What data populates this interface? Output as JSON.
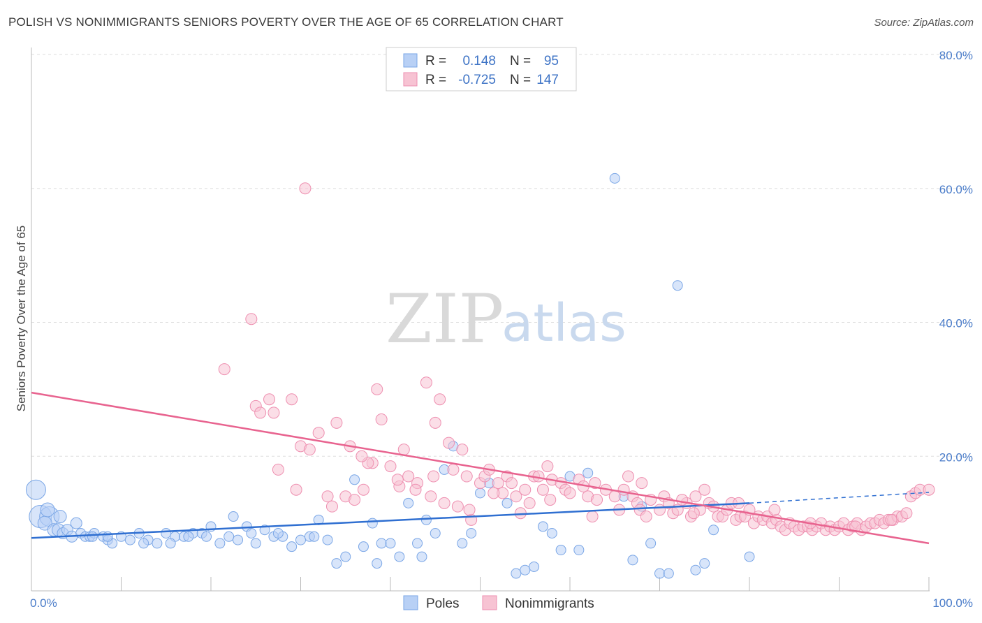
{
  "header": {
    "title": "POLISH VS NONIMMIGRANTS SENIORS POVERTY OVER THE AGE OF 65 CORRELATION CHART",
    "source": "Source: ZipAtlas.com"
  },
  "watermark": {
    "zip": "ZIP",
    "atlas": "atlas"
  },
  "colors": {
    "poles_fill": "#b8d0f5",
    "poles_stroke": "#7aa6e6",
    "poles_line": "#2f6fd1",
    "nonimm_fill": "#f7c3d3",
    "nonimm_stroke": "#ee8fb0",
    "nonimm_line": "#e8638f",
    "grid": "#dddddd",
    "axis_text": "#4a7cc9"
  },
  "legend": {
    "rows": [
      {
        "r_label": "R =",
        "r_value": "0.148",
        "n_label": "N =",
        "n_value": "95"
      },
      {
        "r_label": "R =",
        "r_value": "-0.725",
        "n_label": "N =",
        "n_value": "147"
      }
    ]
  },
  "chart_data": {
    "type": "scatter",
    "xlabel": "",
    "ylabel": "Seniors Poverty Over the Age of 65",
    "xlim": [
      0,
      100
    ],
    "ylim": [
      0,
      80
    ],
    "x_tick_labels": [
      "0.0%",
      "100.0%"
    ],
    "y_ticks": [
      20,
      40,
      60,
      80
    ],
    "y_tick_labels": [
      "20.0%",
      "40.0%",
      "60.0%",
      "80.0%"
    ],
    "grid": true,
    "legend_position": "top-center",
    "series": [
      {
        "name": "Poles",
        "color": "#7aa6e6",
        "trend": {
          "x_start": 0,
          "y_start": 7.8,
          "x_end": 80,
          "y_end": 13.0,
          "dashed_to_x": 100,
          "dashed_to_y": 14.6
        },
        "points": [
          [
            0.5,
            15,
            14
          ],
          [
            1,
            11,
            16
          ],
          [
            2,
            11,
            14
          ],
          [
            1.5,
            10,
            10
          ],
          [
            2.5,
            9,
            9
          ],
          [
            3,
            9,
            9
          ],
          [
            3.5,
            8.5,
            8
          ],
          [
            4,
            9,
            8
          ],
          [
            4.5,
            8,
            8
          ],
          [
            5,
            10,
            8
          ],
          [
            5.5,
            8.5,
            7
          ],
          [
            6,
            8,
            7
          ],
          [
            6.5,
            8,
            7
          ],
          [
            7,
            8.5,
            7
          ],
          [
            8,
            8,
            7
          ],
          [
            8.5,
            7.5,
            7
          ],
          [
            9,
            7,
            7
          ],
          [
            10,
            8,
            7
          ],
          [
            11,
            7.5,
            7
          ],
          [
            12,
            8.5,
            7
          ],
          [
            13,
            7.5,
            7
          ],
          [
            14,
            7,
            7
          ],
          [
            15,
            8.5,
            7
          ],
          [
            16,
            8,
            7
          ],
          [
            17,
            8,
            7
          ],
          [
            18,
            8.5,
            7
          ],
          [
            19,
            8.5,
            7
          ],
          [
            20,
            9.5,
            7
          ],
          [
            21,
            7,
            7
          ],
          [
            22,
            8,
            7
          ],
          [
            23,
            7.5,
            7
          ],
          [
            24,
            9.5,
            7
          ],
          [
            25,
            7,
            7
          ],
          [
            26,
            9,
            7
          ],
          [
            27,
            8,
            7
          ],
          [
            28,
            8,
            7
          ],
          [
            29,
            6.5,
            7
          ],
          [
            30,
            7.5,
            7
          ],
          [
            31,
            8,
            7
          ],
          [
            32,
            10.5,
            7
          ],
          [
            33,
            7.5,
            7
          ],
          [
            34,
            4,
            7
          ],
          [
            35,
            5,
            7
          ],
          [
            36,
            16.5,
            7
          ],
          [
            37,
            6.5,
            7
          ],
          [
            38,
            10,
            7
          ],
          [
            39,
            7,
            7
          ],
          [
            40,
            7,
            7
          ],
          [
            41,
            5,
            7
          ],
          [
            42,
            13,
            7
          ],
          [
            43,
            7,
            7
          ],
          [
            44,
            10.5,
            7
          ],
          [
            45,
            8.5,
            7
          ],
          [
            46,
            18,
            7
          ],
          [
            47,
            21.5,
            7
          ],
          [
            48,
            7,
            7
          ],
          [
            49,
            8.5,
            7
          ],
          [
            50,
            14.5,
            7
          ],
          [
            51,
            16,
            7
          ],
          [
            53,
            13,
            7
          ],
          [
            54,
            2.5,
            7
          ],
          [
            55,
            3,
            7
          ],
          [
            56,
            3.5,
            7
          ],
          [
            57,
            9.5,
            7
          ],
          [
            58,
            8.5,
            7
          ],
          [
            59,
            6,
            7
          ],
          [
            60,
            17,
            7
          ],
          [
            61,
            6,
            7
          ],
          [
            62,
            17.5,
            7
          ],
          [
            65,
            61.5,
            7
          ],
          [
            66,
            14,
            7
          ],
          [
            67,
            4.5,
            7
          ],
          [
            68,
            12.5,
            7
          ],
          [
            69,
            7,
            7
          ],
          [
            70,
            2.5,
            7
          ],
          [
            71,
            2.5,
            7
          ],
          [
            72,
            45.5,
            7
          ],
          [
            74,
            3,
            7
          ],
          [
            75,
            4,
            7
          ],
          [
            76,
            9,
            7
          ],
          [
            80,
            5,
            7
          ],
          [
            8.5,
            8,
            7
          ],
          [
            15.5,
            7,
            7
          ],
          [
            19.5,
            8,
            7
          ],
          [
            12.5,
            7,
            7
          ],
          [
            27.5,
            8.5,
            7
          ],
          [
            22.5,
            11,
            7
          ],
          [
            31.5,
            8,
            7
          ],
          [
            38.5,
            4,
            7
          ],
          [
            43.5,
            5,
            7
          ],
          [
            3.2,
            11,
            9
          ],
          [
            1.8,
            12,
            10
          ],
          [
            6.8,
            8,
            7
          ],
          [
            24.5,
            8.5,
            7
          ],
          [
            17.5,
            8,
            7
          ]
        ]
      },
      {
        "name": "Nonimmigrants",
        "color": "#ee8fb0",
        "trend": {
          "x_start": 0,
          "y_start": 29.5,
          "x_end": 100,
          "y_end": 7.0
        },
        "points": [
          [
            30.5,
            60
          ],
          [
            24.5,
            40.5
          ],
          [
            21.5,
            33
          ],
          [
            25,
            27.5
          ],
          [
            25.5,
            26.5
          ],
          [
            26.5,
            28.5
          ],
          [
            27,
            26.5
          ],
          [
            27.5,
            18
          ],
          [
            29,
            28.5
          ],
          [
            29.5,
            15
          ],
          [
            30,
            21.5
          ],
          [
            31,
            21
          ],
          [
            32,
            23.5
          ],
          [
            33,
            14
          ],
          [
            34,
            25
          ],
          [
            35,
            14
          ],
          [
            35.5,
            21.5
          ],
          [
            36,
            13.5
          ],
          [
            37,
            15
          ],
          [
            38,
            19
          ],
          [
            38.5,
            30
          ],
          [
            39,
            25.5
          ],
          [
            40,
            18.5
          ],
          [
            41,
            15.5
          ],
          [
            41.5,
            21
          ],
          [
            42,
            17
          ],
          [
            43,
            16
          ],
          [
            44,
            31
          ],
          [
            44.5,
            14
          ],
          [
            45,
            25
          ],
          [
            45.5,
            28.5
          ],
          [
            46,
            13
          ],
          [
            47,
            18
          ],
          [
            47.5,
            12.5
          ],
          [
            48,
            21
          ],
          [
            48.5,
            17
          ],
          [
            49,
            10.5
          ],
          [
            50,
            16
          ],
          [
            50.5,
            17
          ],
          [
            51,
            18
          ],
          [
            52,
            16
          ],
          [
            52.5,
            14.5
          ],
          [
            53,
            17
          ],
          [
            54,
            14
          ],
          [
            54.5,
            11.5
          ],
          [
            55,
            15
          ],
          [
            55.5,
            13
          ],
          [
            56,
            17
          ],
          [
            57,
            15
          ],
          [
            57.5,
            18.5
          ],
          [
            58,
            16.5
          ],
          [
            59,
            16
          ],
          [
            59.5,
            15
          ],
          [
            60,
            14.5
          ],
          [
            61,
            16.5
          ],
          [
            62,
            14
          ],
          [
            62.5,
            11
          ],
          [
            63,
            13.5
          ],
          [
            64,
            15
          ],
          [
            65,
            14
          ],
          [
            65.5,
            12
          ],
          [
            66,
            15
          ],
          [
            66.5,
            17
          ],
          [
            67,
            14
          ],
          [
            67.5,
            13
          ],
          [
            68,
            16
          ],
          [
            69,
            13.5
          ],
          [
            70,
            12
          ],
          [
            70.5,
            14
          ],
          [
            71,
            13
          ],
          [
            71.5,
            11.5
          ],
          [
            72,
            12
          ],
          [
            73,
            13
          ],
          [
            73.5,
            11
          ],
          [
            74,
            14
          ],
          [
            74.5,
            12
          ],
          [
            75,
            15
          ],
          [
            75.5,
            13
          ],
          [
            76,
            12.5
          ],
          [
            76.5,
            11
          ],
          [
            77,
            11
          ],
          [
            77.5,
            12
          ],
          [
            78,
            13
          ],
          [
            78.5,
            10.5
          ],
          [
            79,
            11
          ],
          [
            79.5,
            11
          ],
          [
            80,
            12
          ],
          [
            80.5,
            10
          ],
          [
            81,
            11
          ],
          [
            81.5,
            10.5
          ],
          [
            82,
            11
          ],
          [
            82.5,
            10
          ],
          [
            83,
            10.5
          ],
          [
            83.5,
            9.5
          ],
          [
            84,
            9
          ],
          [
            84.5,
            10
          ],
          [
            85,
            9.5
          ],
          [
            85.5,
            9
          ],
          [
            86,
            9.5
          ],
          [
            86.5,
            9.5
          ],
          [
            87,
            9
          ],
          [
            87.5,
            9.5
          ],
          [
            88,
            10
          ],
          [
            88.5,
            9
          ],
          [
            89,
            9.5
          ],
          [
            89.5,
            9
          ],
          [
            90,
            9.5
          ],
          [
            90.5,
            10
          ],
          [
            91,
            9
          ],
          [
            91.5,
            9.5
          ],
          [
            92,
            10
          ],
          [
            92.5,
            9
          ],
          [
            93,
            9.5
          ],
          [
            93.5,
            10
          ],
          [
            94,
            10
          ],
          [
            94.5,
            10.5
          ],
          [
            95,
            10
          ],
          [
            95.5,
            10.5
          ],
          [
            96,
            10.5
          ],
          [
            96.5,
            11
          ],
          [
            97,
            11
          ],
          [
            97.5,
            11.5
          ],
          [
            98,
            14
          ],
          [
            98.5,
            14.5
          ],
          [
            99,
            15
          ],
          [
            100,
            15
          ],
          [
            46.5,
            22
          ],
          [
            37.5,
            19
          ],
          [
            33.5,
            12.5
          ],
          [
            48.8,
            12
          ],
          [
            51.5,
            14.5
          ],
          [
            56.5,
            17
          ],
          [
            62.8,
            16
          ],
          [
            67.8,
            12
          ],
          [
            72.5,
            13.5
          ],
          [
            82.8,
            12
          ],
          [
            86.8,
            10
          ],
          [
            91.8,
            9.5
          ],
          [
            95.8,
            10.5
          ],
          [
            68.5,
            11
          ],
          [
            73.8,
            11.5
          ],
          [
            78.8,
            13
          ],
          [
            61.5,
            15.5
          ],
          [
            57.8,
            13.5
          ],
          [
            53.5,
            16
          ],
          [
            44.8,
            17
          ],
          [
            40.8,
            16.5
          ],
          [
            36.8,
            20
          ],
          [
            42.8,
            15
          ]
        ]
      }
    ]
  },
  "bottom_legend": {
    "items": [
      "Poles",
      "Nonimmigrants"
    ]
  }
}
